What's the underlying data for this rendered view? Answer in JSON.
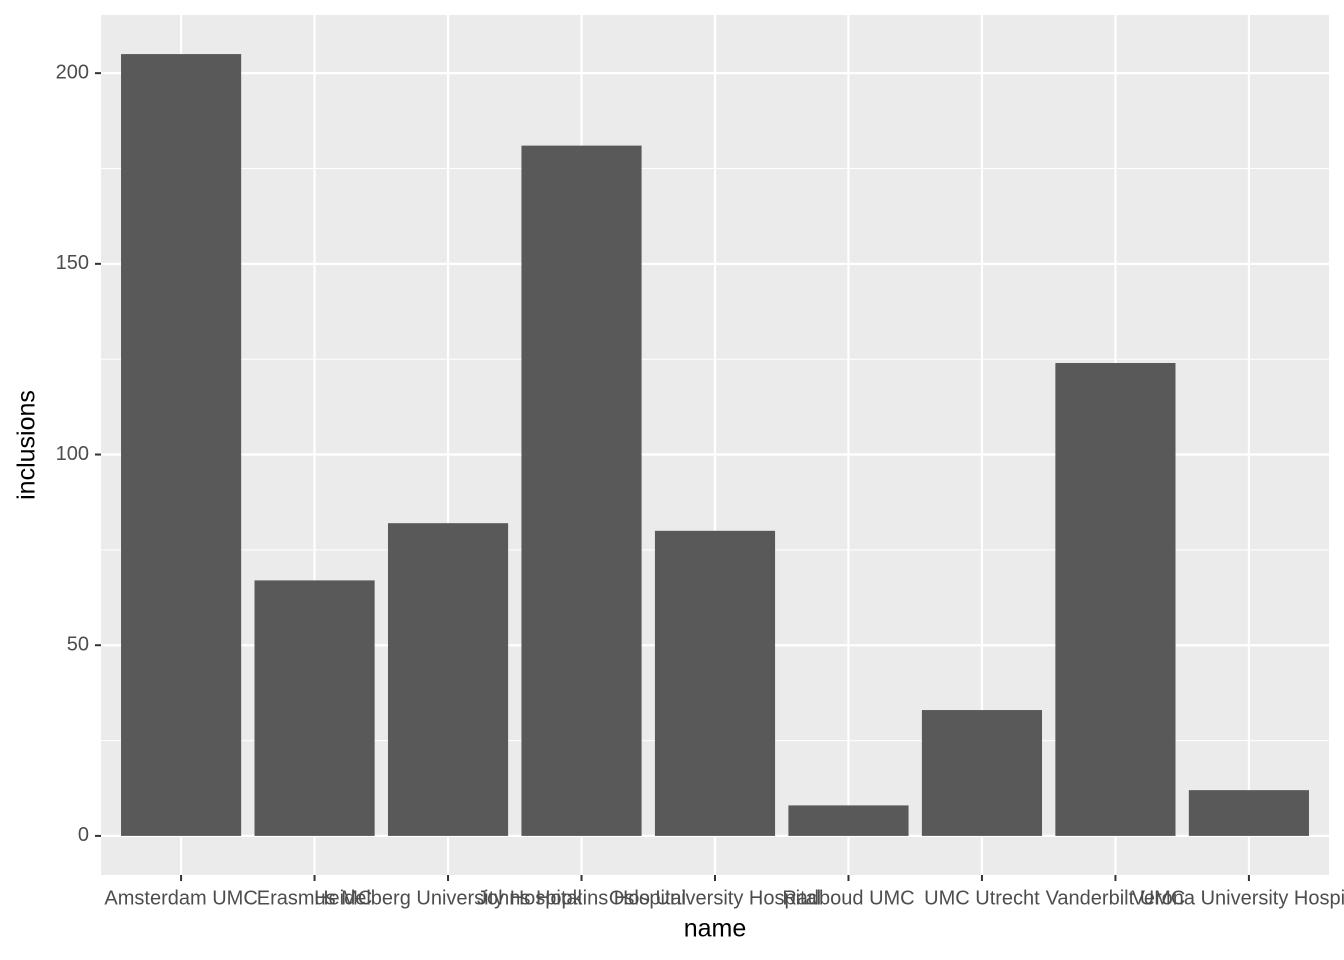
{
  "chart_data": {
    "type": "bar",
    "x_label": "name",
    "y_label": "inclusions",
    "categories": [
      "Amsterdam UMC",
      "Erasmus MC",
      "Heidelberg University Hospital",
      "Johns Hopkins Hospital",
      "Oslo University Hospital",
      "Radboud UMC",
      "UMC Utrecht",
      "Vanderbilt UMC",
      "Verona University Hospital"
    ],
    "values": [
      205,
      67,
      82,
      181,
      80,
      8,
      33,
      124,
      12
    ],
    "color": "#595959",
    "ylim": [
      -10.25,
      215.25
    ],
    "yticks": [
      0,
      50,
      100,
      150,
      200
    ],
    "grid": true
  }
}
